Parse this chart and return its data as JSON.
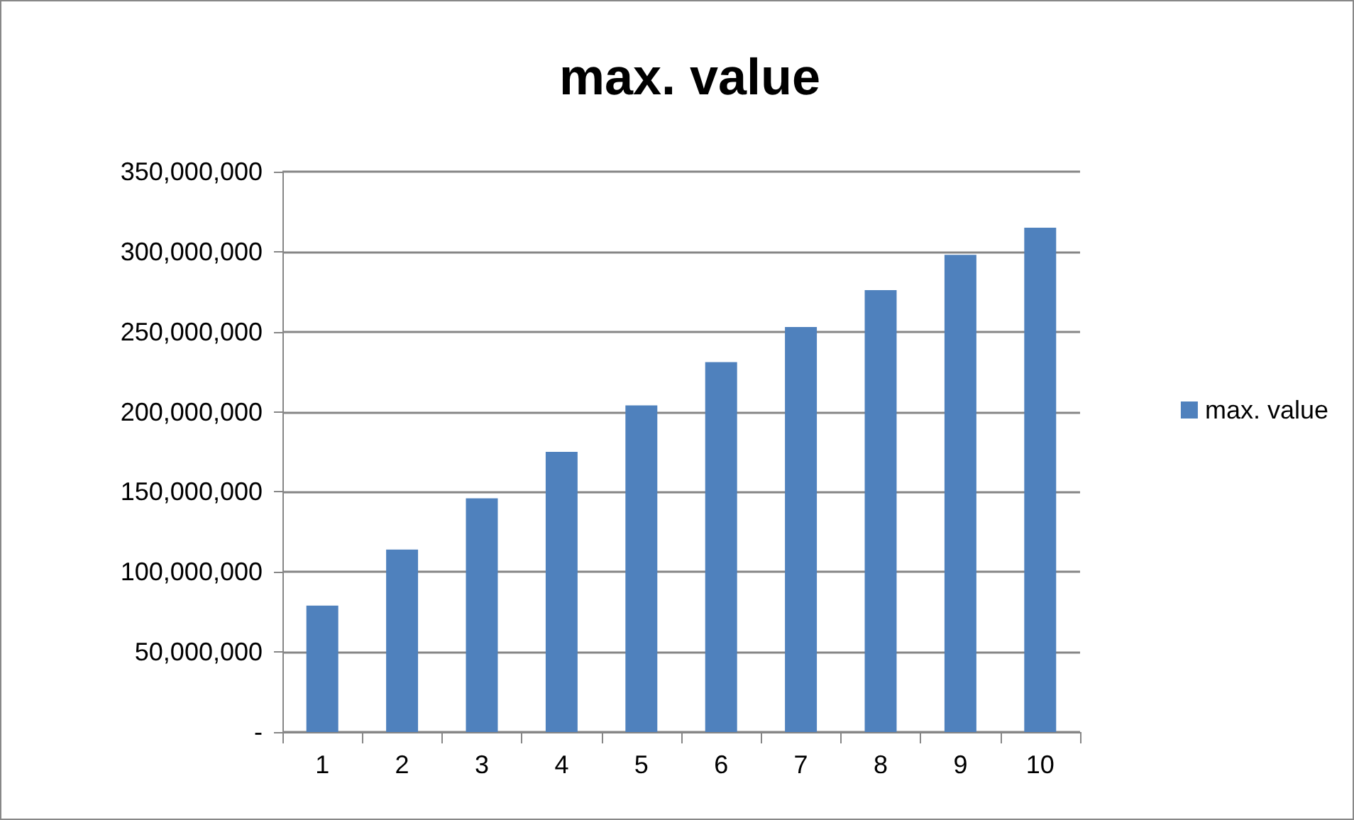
{
  "chart_data": {
    "type": "bar",
    "title": "max. value",
    "categories": [
      "1",
      "2",
      "3",
      "4",
      "5",
      "6",
      "7",
      "8",
      "9",
      "10"
    ],
    "series": [
      {
        "name": "max. value",
        "color": "#4f81bd",
        "values": [
          79000000,
          114000000,
          146000000,
          175000000,
          204000000,
          231000000,
          253000000,
          276000000,
          298000000,
          315000000
        ]
      }
    ],
    "ylim": [
      0,
      350000000
    ],
    "yticks": [
      {
        "value": 0,
        "label": "-"
      },
      {
        "value": 50000000,
        "label": "50,000,000"
      },
      {
        "value": 100000000,
        "label": "100,000,000"
      },
      {
        "value": 150000000,
        "label": "150,000,000"
      },
      {
        "value": 200000000,
        "label": "200,000,000"
      },
      {
        "value": 250000000,
        "label": "250,000,000"
      },
      {
        "value": 300000000,
        "label": "300,000,000"
      },
      {
        "value": 350000000,
        "label": "350,000,000"
      }
    ],
    "grid": "y",
    "legend": "right"
  }
}
